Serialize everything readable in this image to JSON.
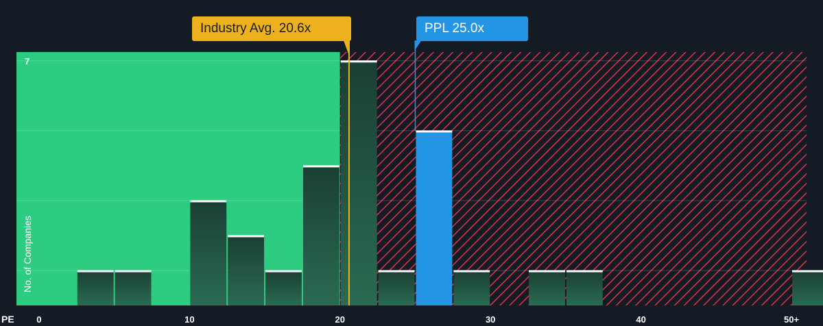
{
  "chart_data": {
    "type": "bar",
    "x_axis_label": "PE",
    "y_axis_label": "No. of Companies",
    "x_ticks": [
      "0",
      "10",
      "20",
      "30",
      "40",
      "50+"
    ],
    "y_tick_labels": [
      "7"
    ],
    "xlim": [
      -1.5,
      51
    ],
    "ylim": [
      0,
      7.25
    ],
    "bin_width": 2.5,
    "bins": [
      {
        "start": 2.5,
        "count": 1
      },
      {
        "start": 5.0,
        "count": 1
      },
      {
        "start": 10.0,
        "count": 3
      },
      {
        "start": 12.5,
        "count": 2
      },
      {
        "start": 15.0,
        "count": 1
      },
      {
        "start": 17.5,
        "count": 4
      },
      {
        "start": 20.0,
        "count": 7
      },
      {
        "start": 22.5,
        "count": 1
      },
      {
        "start": 25.0,
        "count": 5,
        "highlight": true
      },
      {
        "start": 27.5,
        "count": 1
      },
      {
        "start": 32.5,
        "count": 1
      },
      {
        "start": 35.0,
        "count": 1
      },
      {
        "start": 50.0,
        "count": 1
      }
    ],
    "industry_avg": {
      "label": "Industry Avg. 20.6x",
      "value": 20.6
    },
    "company": {
      "label": "PPL 25.0x",
      "value": 25.0
    },
    "green_zone_max": 20,
    "colors": {
      "background": "#151b24",
      "green_zone": "#2ecc80",
      "red_zone": "#e0314b",
      "bar": "#1e4a3b",
      "highlight_bar": "#2494e4",
      "bar_cap": "#ffffff",
      "industry": "#ecb11d",
      "company": "#2494e4"
    }
  }
}
